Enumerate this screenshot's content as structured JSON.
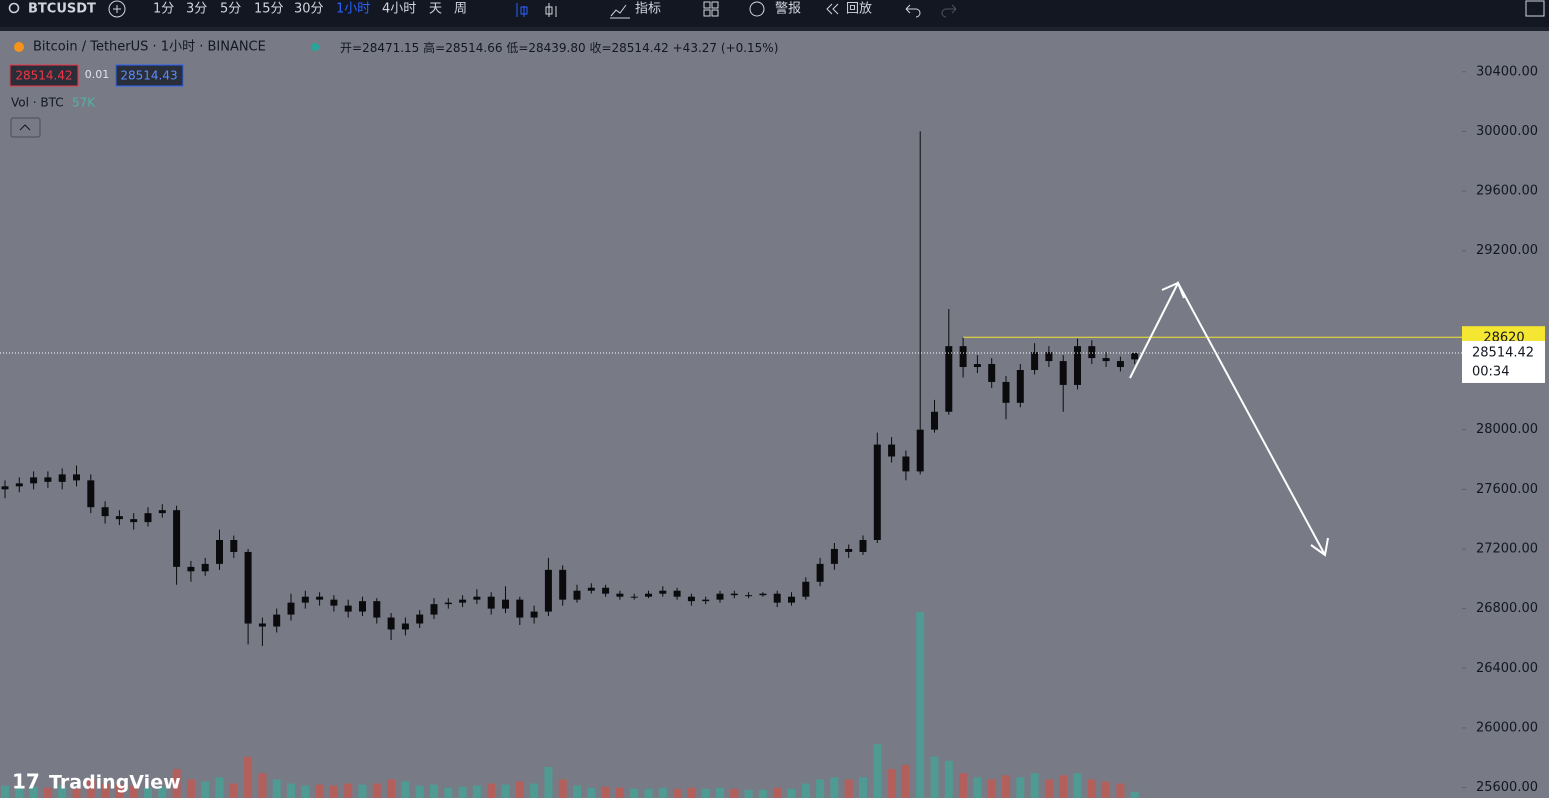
{
  "toolbar": {
    "symbol": "BTCUSDT",
    "intervals": [
      "1分",
      "3分",
      "5分",
      "15分",
      "30分",
      "1小时",
      "4小时",
      "天",
      "周"
    ],
    "active_interval": 5,
    "indicators": "指标",
    "alerts": "警报",
    "replay": "回放"
  },
  "legend": {
    "title": "Bitcoin / TetherUS · 1小时 · BINANCE",
    "ohlc_labels": [
      "开=",
      "高=",
      "低=",
      "收="
    ],
    "ohlc_values": [
      "28471.15",
      "28514.66",
      "28439.80",
      "28514.42"
    ],
    "change": "+43.27 (+0.15%)",
    "bid": "28514.42",
    "spread": "0.01",
    "ask": "28514.43",
    "volume_label": "Vol · BTC",
    "volume_value": "57K"
  },
  "countdown": "00:34",
  "brand": "TradingView",
  "chart_data": {
    "type": "candlestick",
    "open": [
      27600,
      27620,
      27640,
      27680,
      27650,
      27700,
      27660,
      27480,
      27420,
      27400,
      27380,
      27440,
      27460,
      27080,
      27050,
      27100,
      27260,
      27180,
      26700,
      26680,
      26760,
      26840,
      26880,
      26860,
      26820,
      26780,
      26850,
      26740,
      26660,
      26700,
      26760,
      26830,
      26840,
      26860,
      26880,
      26800,
      26860,
      26740,
      26780,
      27060,
      26860,
      26920,
      26940,
      26900,
      26880,
      26880,
      26900,
      26920,
      26880,
      26850,
      26860,
      26900,
      26890,
      26890,
      26900,
      26840,
      26880,
      26980,
      27100,
      27200,
      27180,
      27260,
      27900,
      27820,
      27720,
      28000,
      28120,
      28560,
      28420,
      28440,
      28320,
      28180,
      28400,
      28520,
      28460,
      28300,
      28560,
      28480,
      28460,
      28471.15
    ],
    "high": [
      27660,
      27680,
      27720,
      27720,
      27740,
      27760,
      27700,
      27520,
      27460,
      27440,
      27480,
      27500,
      27490,
      27120,
      27140,
      27330,
      27290,
      27200,
      26740,
      26800,
      26900,
      26920,
      26910,
      26890,
      26860,
      26880,
      26870,
      26770,
      26740,
      26790,
      26870,
      26870,
      26890,
      26930,
      26910,
      26950,
      26880,
      26820,
      27140,
      27090,
      26960,
      26970,
      26960,
      26920,
      26900,
      26920,
      26950,
      26940,
      26900,
      26880,
      26920,
      26920,
      26910,
      26910,
      26920,
      26910,
      27010,
      27140,
      27240,
      27230,
      27290,
      27980,
      27950,
      27860,
      30000,
      28200,
      28808.51,
      28620,
      28500,
      28480,
      28360,
      28440,
      28580,
      28560,
      28500,
      28610,
      28600,
      28520,
      28490,
      28514.66
    ],
    "low": [
      27540,
      27580,
      27600,
      27610,
      27600,
      27620,
      27440,
      27370,
      27360,
      27330,
      27350,
      27410,
      26960,
      26980,
      27020,
      27060,
      27140,
      26560,
      26550,
      26640,
      26720,
      26800,
      26820,
      26780,
      26740,
      26750,
      26700,
      26590,
      26620,
      26670,
      26730,
      26800,
      26810,
      26830,
      26760,
      26770,
      26690,
      26700,
      26750,
      26820,
      26840,
      26900,
      26880,
      26860,
      26860,
      26870,
      26880,
      26860,
      26820,
      26830,
      26840,
      26870,
      26870,
      26880,
      26810,
      26820,
      26860,
      26950,
      27060,
      27140,
      27160,
      27240,
      27780,
      27660,
      27700,
      27980,
      28100,
      28350,
      28380,
      28280,
      28070,
      28150,
      28370,
      28420,
      28120,
      28270,
      28440,
      28420,
      28390,
      28439.8
    ],
    "close": [
      27620,
      27640,
      27680,
      27650,
      27700,
      27660,
      27480,
      27420,
      27400,
      27380,
      27440,
      27460,
      27080,
      27050,
      27100,
      27260,
      27180,
      26700,
      26680,
      26760,
      26840,
      26880,
      26860,
      26820,
      26780,
      26850,
      26740,
      26660,
      26700,
      26760,
      26830,
      26840,
      26860,
      26880,
      26800,
      26860,
      26740,
      26780,
      27060,
      26860,
      26920,
      26940,
      26900,
      26880,
      26880,
      26900,
      26920,
      26880,
      26850,
      26860,
      26900,
      26890,
      26890,
      26900,
      26840,
      26880,
      26980,
      27100,
      27200,
      27180,
      27260,
      27900,
      27820,
      27720,
      28000,
      28120,
      28560,
      28420,
      28440,
      28320,
      28180,
      28400,
      28520,
      28460,
      28300,
      28560,
      28480,
      28460,
      28420,
      28514.42
    ],
    "volume": [
      600,
      500,
      550,
      500,
      600,
      450,
      900,
      700,
      650,
      600,
      500,
      550,
      1400,
      900,
      800,
      1000,
      700,
      2000,
      1200,
      900,
      700,
      600,
      650,
      600,
      700,
      650,
      700,
      900,
      800,
      600,
      650,
      500,
      550,
      600,
      700,
      650,
      800,
      700,
      1500,
      900,
      600,
      500,
      550,
      500,
      450,
      450,
      500,
      450,
      500,
      450,
      500,
      450,
      400,
      400,
      500,
      450,
      700,
      900,
      1000,
      900,
      1000,
      2600,
      1400,
      1600,
      9000,
      2000,
      1800,
      1200,
      1000,
      900,
      1100,
      1000,
      1200,
      900,
      1100,
      1200,
      900,
      800,
      700,
      300
    ],
    "ylim": [
      25530,
      30680
    ],
    "yticks": [
      {
        "value": 25600,
        "label": "25600.00"
      },
      {
        "value": 26000,
        "label": "26000.00"
      },
      {
        "value": 26400,
        "label": "26400.00"
      },
      {
        "value": 26800,
        "label": "26800.00"
      },
      {
        "value": 27200,
        "label": "27200.00"
      },
      {
        "value": 27600,
        "label": "27600.00"
      },
      {
        "value": 28000,
        "label": "28000.00"
      },
      {
        "value": 29200,
        "label": "29200.00"
      },
      {
        "value": 29600,
        "label": "29600.00"
      },
      {
        "value": 30000,
        "label": "30000.00"
      },
      {
        "value": 30400,
        "label": "30400.00"
      }
    ],
    "colors": {
      "candle": "#0b0b0e",
      "volume_up": "#4f9a92",
      "volume_down": "#b35f5c",
      "high_line": "#f5e632",
      "last_line": "#ffffff"
    },
    "grid": false
  }
}
